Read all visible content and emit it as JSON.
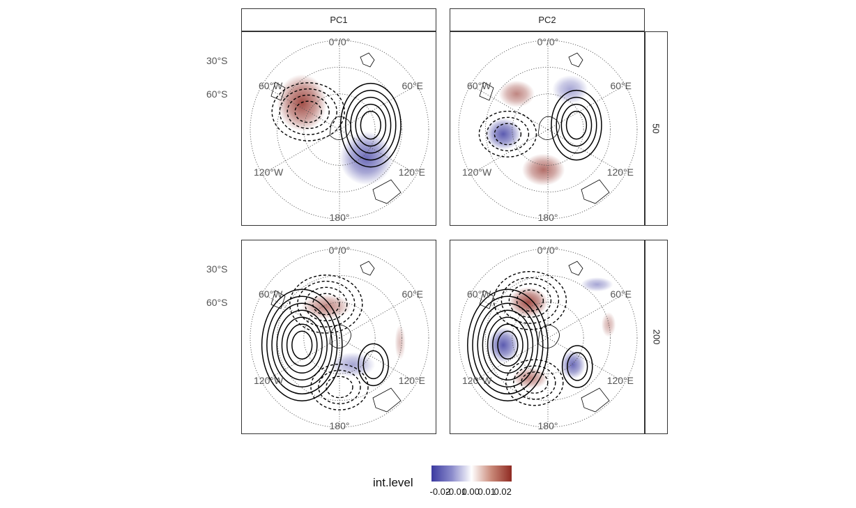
{
  "chart_data": {
    "type": "polar stereographic contour map facet grid",
    "columns": [
      "PC1",
      "PC2"
    ],
    "rows": [
      "50",
      "200"
    ],
    "lat_labels": [
      "30°S",
      "60°S"
    ],
    "lon_labels": [
      "0°",
      "0°",
      "60°E",
      "60°W",
      "120°E",
      "120°W",
      "180°"
    ],
    "legend": {
      "title": "int.level",
      "ticks": [
        "-0.02",
        "-0.01",
        "0.00",
        "0.01",
        "0.02"
      ],
      "range": [
        -0.025,
        0.025
      ],
      "colors": [
        "#3b3aa0",
        "#8a8acb",
        "#ffffff",
        "#c98878",
        "#8f2a22"
      ]
    },
    "panels": [
      {
        "column": "PC1",
        "row": "50",
        "blobs": [
          {
            "x": -0.42,
            "y": -0.3,
            "rx": 0.28,
            "ry": 0.32,
            "level": 0.022
          },
          {
            "x": 0.3,
            "y": 0.32,
            "rx": 0.3,
            "ry": 0.3,
            "level": -0.02
          }
        ],
        "solid_centers": [
          {
            "x": 0.35,
            "y": -0.05,
            "n": 5
          }
        ],
        "dashed_centers": [
          {
            "x": -0.35,
            "y": -0.2,
            "n": 4
          }
        ]
      },
      {
        "column": "PC2",
        "row": "50",
        "blobs": [
          {
            "x": -0.35,
            "y": -0.4,
            "rx": 0.2,
            "ry": 0.15,
            "level": 0.015
          },
          {
            "x": -0.5,
            "y": 0.05,
            "rx": 0.2,
            "ry": 0.18,
            "level": -0.022
          },
          {
            "x": -0.05,
            "y": 0.45,
            "rx": 0.24,
            "ry": 0.18,
            "level": 0.018
          },
          {
            "x": 0.25,
            "y": -0.45,
            "rx": 0.2,
            "ry": 0.16,
            "level": -0.012
          }
        ],
        "solid_centers": [
          {
            "x": 0.32,
            "y": -0.05,
            "n": 4
          }
        ],
        "dashed_centers": [
          {
            "x": -0.45,
            "y": 0.05,
            "n": 3
          }
        ]
      },
      {
        "column": "PC1",
        "row": "200",
        "blobs": [
          {
            "x": -0.15,
            "y": -0.35,
            "rx": 0.28,
            "ry": 0.14,
            "level": 0.015
          },
          {
            "x": 0.15,
            "y": 0.3,
            "rx": 0.25,
            "ry": 0.14,
            "level": -0.012
          },
          {
            "x": 0.68,
            "y": 0.05,
            "rx": 0.06,
            "ry": 0.2,
            "level": 0.008
          }
        ],
        "solid_centers": [
          {
            "x": -0.42,
            "y": 0.08,
            "n": 7
          },
          {
            "x": 0.38,
            "y": 0.3,
            "n": 2
          }
        ],
        "dashed_centers": [
          {
            "x": -0.15,
            "y": -0.38,
            "n": 4
          },
          {
            "x": 0.0,
            "y": 0.55,
            "n": 3
          }
        ]
      },
      {
        "column": "PC2",
        "row": "200",
        "blobs": [
          {
            "x": -0.22,
            "y": -0.4,
            "rx": 0.22,
            "ry": 0.17,
            "level": 0.022
          },
          {
            "x": -0.5,
            "y": 0.08,
            "rx": 0.18,
            "ry": 0.2,
            "level": -0.022
          },
          {
            "x": 0.28,
            "y": 0.3,
            "rx": 0.14,
            "ry": 0.16,
            "level": -0.02
          },
          {
            "x": -0.2,
            "y": 0.45,
            "rx": 0.2,
            "ry": 0.12,
            "level": 0.015
          },
          {
            "x": 0.55,
            "y": -0.6,
            "rx": 0.18,
            "ry": 0.08,
            "level": -0.012
          },
          {
            "x": 0.68,
            "y": -0.15,
            "rx": 0.08,
            "ry": 0.14,
            "level": 0.01
          }
        ],
        "solid_centers": [
          {
            "x": -0.45,
            "y": 0.08,
            "n": 7
          },
          {
            "x": 0.33,
            "y": 0.32,
            "n": 2
          }
        ],
        "dashed_centers": [
          {
            "x": -0.2,
            "y": -0.42,
            "n": 4
          },
          {
            "x": -0.15,
            "y": 0.5,
            "n": 3
          }
        ]
      }
    ]
  }
}
